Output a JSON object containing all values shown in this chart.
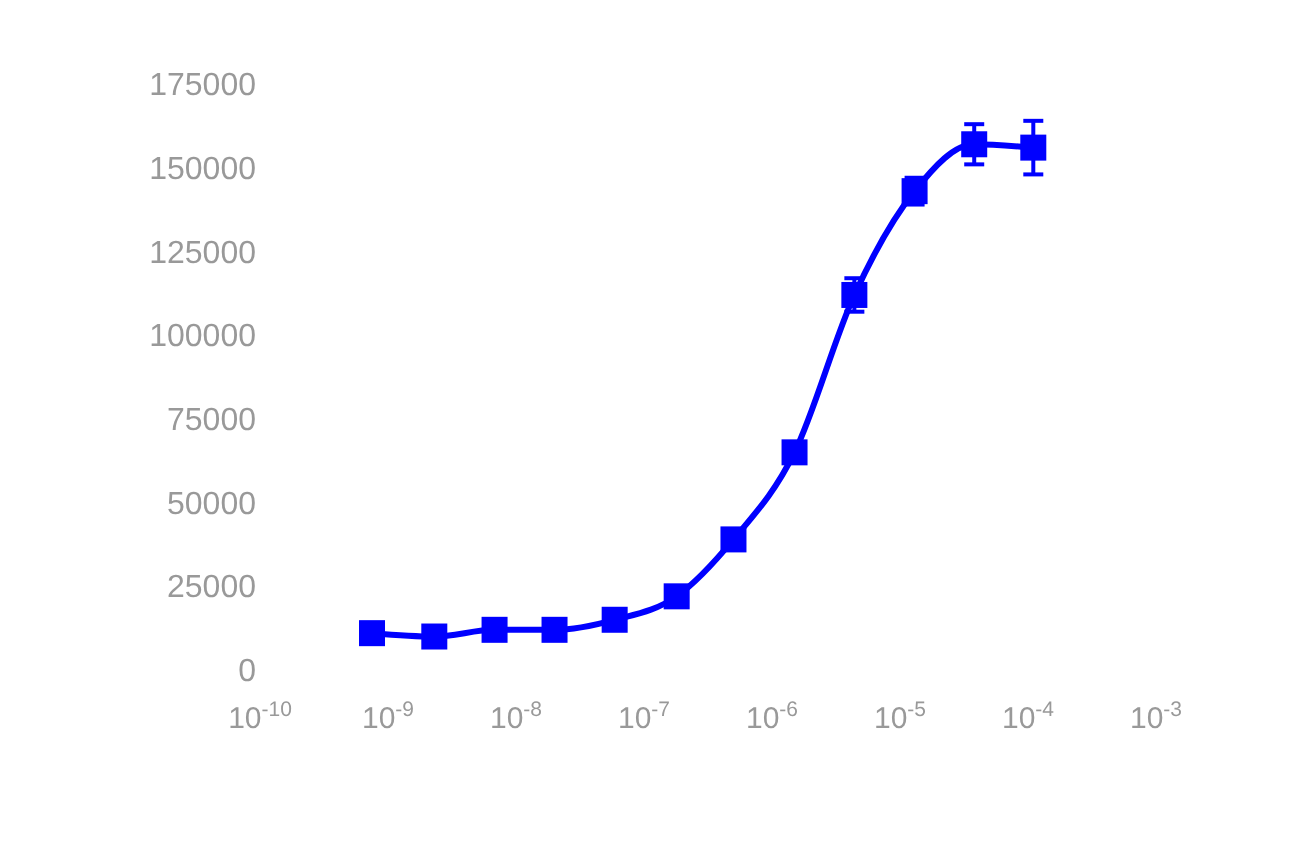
{
  "chart_data": {
    "type": "line",
    "log": "x",
    "marker": "square",
    "line_style": "solid",
    "grid": false,
    "xlim": [
      1e-10,
      0.001
    ],
    "xticks": [
      {
        "value": 1e-10,
        "label": "10$^{-10}$"
      },
      {
        "value": 1e-09,
        "label": "10$^{-9}$"
      },
      {
        "value": 1e-08,
        "label": "10$^{-8}$"
      },
      {
        "value": 1e-07,
        "label": "10$^{-7}$"
      },
      {
        "value": 1e-06,
        "label": "10$^{-6}$"
      },
      {
        "value": 1e-05,
        "label": "10$^{-5}$"
      },
      {
        "value": 0.0001,
        "label": "10$^{-4}$"
      },
      {
        "value": 0.001,
        "label": "10$^{-3}$"
      }
    ],
    "ylim": [
      0,
      175000
    ],
    "yticks": [
      0,
      25000,
      50000,
      75000,
      100000,
      125000,
      150000,
      175000
    ],
    "series": [
      {
        "color": "#0000ff",
        "x": [
          7.5e-10,
          2.3e-09,
          6.8e-09,
          2e-08,
          5.9e-08,
          1.8e-07,
          5e-07,
          1.5e-06,
          4.4e-06,
          1.3e-05,
          3.8e-05,
          0.00011
        ],
        "values": [
          11000,
          10000,
          12000,
          12000,
          15000,
          22000,
          39000,
          65000,
          112000,
          143000,
          157000,
          156000
        ],
        "errors": [
          null,
          null,
          null,
          null,
          null,
          null,
          null,
          null,
          5000,
          4000,
          6000,
          8000
        ]
      }
    ]
  }
}
